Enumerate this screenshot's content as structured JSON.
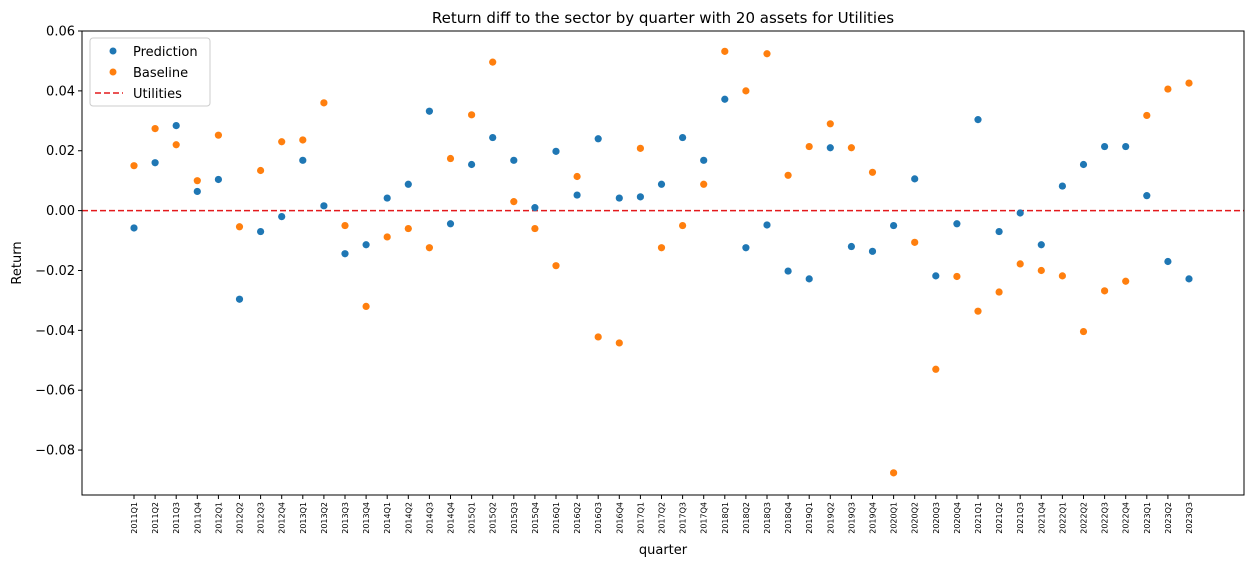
{
  "chart_data": {
    "type": "scatter",
    "title": "Return diff to the sector by quarter with 20 assets for Utilities",
    "xlabel": "quarter",
    "ylabel": "Return",
    "ylim": [
      -0.095,
      0.06
    ],
    "yticks": [
      0.06,
      0.04,
      0.02,
      0.0,
      -0.02,
      -0.04,
      -0.06,
      -0.08
    ],
    "ytick_labels": [
      "0.06",
      "0.04",
      "0.02",
      "0.00",
      "−0.02",
      "−0.04",
      "−0.06",
      "−0.08"
    ],
    "categories": [
      "2011Q1",
      "2011Q2",
      "2011Q3",
      "2011Q4",
      "2012Q1",
      "2012Q2",
      "2012Q3",
      "2012Q4",
      "2013Q1",
      "2013Q2",
      "2013Q3",
      "2013Q4",
      "2014Q1",
      "2014Q2",
      "2014Q3",
      "2014Q4",
      "2015Q1",
      "2015Q2",
      "2015Q3",
      "2015Q4",
      "2016Q1",
      "2016Q2",
      "2016Q3",
      "2016Q4",
      "2017Q1",
      "2017Q2",
      "2017Q3",
      "2017Q4",
      "2018Q1",
      "2018Q2",
      "2018Q3",
      "2018Q4",
      "2019Q1",
      "2019Q2",
      "2019Q3",
      "2019Q4",
      "2020Q1",
      "2020Q2",
      "2020Q3",
      "2020Q4",
      "2021Q1",
      "2021Q2",
      "2021Q3",
      "2021Q4",
      "2022Q1",
      "2022Q2",
      "2022Q3",
      "2022Q4",
      "2023Q1",
      "2023Q2",
      "2023Q3"
    ],
    "series": [
      {
        "name": "Prediction",
        "color": "#1f77b4",
        "values": [
          -0.0058,
          0.016,
          0.0284,
          0.0064,
          0.0104,
          -0.0296,
          -0.007,
          -0.002,
          0.0168,
          0.0016,
          -0.0144,
          -0.0114,
          0.0042,
          0.0088,
          0.0332,
          -0.0044,
          0.0154,
          0.0244,
          0.0168,
          0.001,
          0.0198,
          0.0052,
          0.024,
          0.0042,
          0.0046,
          0.0088,
          0.0244,
          0.0168,
          0.0372,
          -0.0124,
          -0.0048,
          -0.0202,
          -0.0228,
          0.021,
          -0.012,
          -0.0136,
          -0.005,
          0.0106,
          -0.0218,
          -0.0044,
          0.0304,
          -0.007,
          -0.0008,
          -0.0114,
          0.0082,
          0.0154,
          0.0214,
          0.0214,
          0.005,
          -0.017,
          -0.0228
        ]
      },
      {
        "name": "Baseline",
        "color": "#ff7f0e",
        "values": [
          0.015,
          0.0274,
          0.022,
          0.01,
          0.0252,
          -0.0054,
          0.0134,
          0.023,
          0.0236,
          0.036,
          -0.005,
          -0.032,
          -0.0088,
          -0.006,
          -0.0124,
          0.0174,
          0.032,
          0.0496,
          0.003,
          -0.006,
          -0.0184,
          0.0114,
          -0.0422,
          -0.0442,
          0.0208,
          -0.0124,
          -0.005,
          0.0088,
          0.0532,
          0.04,
          0.0524,
          0.0118,
          0.0214,
          0.029,
          0.021,
          0.0128,
          -0.0876,
          -0.0106,
          -0.053,
          -0.022,
          -0.0336,
          -0.0272,
          -0.0178,
          -0.02,
          -0.0218,
          -0.0404,
          -0.0268,
          -0.0236,
          0.0318,
          0.0406,
          0.0426
        ]
      }
    ],
    "reference_line": {
      "name": "Utilities",
      "y": 0.0,
      "color": "#e41a1c",
      "style": "dashed"
    },
    "legend": {
      "placement": "top-left",
      "entries": [
        "Prediction",
        "Baseline",
        "Utilities"
      ]
    },
    "grid": false
  }
}
